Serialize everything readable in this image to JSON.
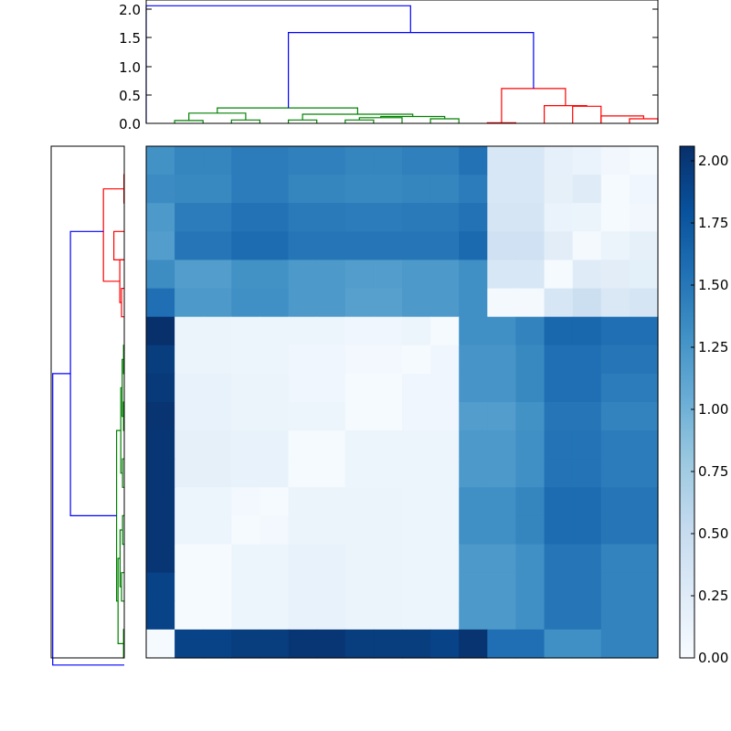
{
  "chart_data": [
    {
      "type": "dendrogram",
      "orientation": "top",
      "ylim": [
        0,
        2.15
      ],
      "yticks": [
        "0.0",
        "0.5",
        "1.0",
        "1.5",
        "2.0"
      ],
      "leaf_slots": 18,
      "colors": {
        "root": "#0000ff",
        "cluster_a": "#008000",
        "cluster_b": "#ff0000"
      },
      "links": [
        {
          "x": [
            0.5,
            0.5,
            1.5,
            1.5
          ],
          "y": [
            0,
            0.05,
            0.05,
            0
          ],
          "color": "#008000"
        },
        {
          "x": [
            2.5,
            2.5,
            3.5,
            3.5
          ],
          "y": [
            0,
            0.06,
            0.06,
            0
          ],
          "color": "#008000"
        },
        {
          "x": [
            1.0,
            1.0,
            3.0,
            3.0
          ],
          "y": [
            0.05,
            0.18,
            0.18,
            0.06
          ],
          "color": "#008000"
        },
        {
          "x": [
            4.5,
            4.5,
            5.5,
            5.5
          ],
          "y": [
            0,
            0.06,
            0.06,
            0
          ],
          "color": "#008000"
        },
        {
          "x": [
            6.5,
            6.5,
            7.5,
            7.5
          ],
          "y": [
            0,
            0.06,
            0.06,
            0
          ],
          "color": "#008000"
        },
        {
          "x": [
            7.0,
            7.0,
            8.5,
            8.5
          ],
          "y": [
            0.06,
            0.1,
            0.1,
            0
          ],
          "color": "#008000"
        },
        {
          "x": [
            9.5,
            9.5,
            10.5,
            10.5
          ],
          "y": [
            0,
            0.08,
            0.08,
            0
          ],
          "color": "#008000"
        },
        {
          "x": [
            7.75,
            7.75,
            10.0,
            10.0
          ],
          "y": [
            0.1,
            0.12,
            0.12,
            0.08
          ],
          "color": "#008000"
        },
        {
          "x": [
            5.0,
            5.0,
            8.875,
            8.875
          ],
          "y": [
            0.06,
            0.16,
            0.16,
            0.12
          ],
          "color": "#008000"
        },
        {
          "x": [
            2.0,
            2.0,
            6.9375,
            6.9375
          ],
          "y": [
            0.18,
            0.27,
            0.27,
            0.16
          ],
          "color": "#008000"
        },
        {
          "x": [
            11.5,
            11.5,
            12.5,
            12.5
          ],
          "y": [
            0,
            0.01,
            0.01,
            0
          ],
          "color": "#ff0000"
        },
        {
          "x": [
            14.5,
            14.5,
            15.5,
            15.5
          ],
          "y": [
            0,
            0.3,
            0.3,
            0
          ],
          "color": "#ff0000"
        },
        {
          "x": [
            16.5,
            16.5,
            17.5,
            17.5
          ],
          "y": [
            0,
            0.08,
            0.08,
            0
          ],
          "color": "#ff0000"
        },
        {
          "x": [
            15.5,
            15.5,
            17.0,
            17.0
          ],
          "y": [
            0,
            0.13,
            0.13,
            0.08
          ],
          "color": "#ff0000"
        },
        {
          "x": [
            13.5,
            13.5,
            15.0,
            15.0
          ],
          "y": [
            0,
            0.31,
            0.31,
            0.3
          ],
          "color": "#ff0000"
        },
        {
          "x": [
            12.0,
            12.0,
            14.25,
            14.25
          ],
          "y": [
            0.01,
            0.61,
            0.61,
            0.31
          ],
          "color": "#ff0000"
        },
        {
          "x": [
            4.5,
            4.5,
            13.125,
            13.125
          ],
          "y": [
            0.27,
            1.59,
            1.59,
            0.61
          ],
          "color": "#0000ff"
        },
        {
          "x": [
            -0.5,
            -0.5,
            8.8,
            8.8
          ],
          "y": [
            0,
            2.06,
            2.06,
            1.59
          ],
          "color": "#0000ff"
        }
      ]
    },
    {
      "type": "heatmap",
      "rows": 18,
      "cols": 18,
      "zlim": [
        0,
        2.05
      ],
      "colormap": "Blues",
      "values": [
        [
          1.28,
          1.38,
          1.38,
          1.45,
          1.45,
          1.42,
          1.42,
          1.38,
          1.38,
          1.42,
          1.42,
          1.53,
          0.32,
          0.32,
          0.17,
          0.13,
          0.06,
          0.02
        ],
        [
          1.33,
          1.35,
          1.35,
          1.45,
          1.45,
          1.38,
          1.38,
          1.35,
          1.35,
          1.38,
          1.38,
          1.45,
          0.32,
          0.32,
          0.18,
          0.25,
          0.02,
          0.08
        ],
        [
          1.22,
          1.45,
          1.45,
          1.53,
          1.53,
          1.47,
          1.47,
          1.45,
          1.45,
          1.47,
          1.47,
          1.53,
          0.35,
          0.35,
          0.13,
          0.12,
          0.02,
          0.06
        ],
        [
          1.18,
          1.5,
          1.5,
          1.58,
          1.58,
          1.5,
          1.5,
          1.5,
          1.5,
          1.5,
          1.5,
          1.6,
          0.42,
          0.42,
          0.22,
          0.03,
          0.12,
          0.18
        ],
        [
          1.32,
          1.18,
          1.18,
          1.28,
          1.28,
          1.22,
          1.22,
          1.18,
          1.18,
          1.22,
          1.22,
          1.3,
          0.32,
          0.32,
          0.02,
          0.25,
          0.22,
          0.2
        ],
        [
          1.55,
          1.22,
          1.22,
          1.3,
          1.3,
          1.22,
          1.22,
          1.15,
          1.15,
          1.22,
          1.22,
          1.3,
          0.03,
          0.03,
          0.33,
          0.45,
          0.3,
          0.35
        ],
        [
          2.05,
          0.12,
          0.12,
          0.1,
          0.1,
          0.1,
          0.1,
          0.08,
          0.08,
          0.1,
          0.02,
          1.3,
          1.3,
          1.4,
          1.62,
          1.62,
          1.55,
          1.55
        ],
        [
          1.95,
          0.12,
          0.12,
          0.1,
          0.1,
          0.08,
          0.08,
          0.05,
          0.05,
          0.02,
          0.08,
          1.25,
          1.25,
          1.35,
          1.55,
          1.55,
          1.5,
          1.5
        ],
        [
          1.98,
          0.15,
          0.15,
          0.12,
          0.12,
          0.08,
          0.08,
          0.02,
          0.02,
          0.08,
          0.08,
          1.25,
          1.25,
          1.35,
          1.55,
          1.55,
          1.45,
          1.45
        ],
        [
          2.02,
          0.15,
          0.15,
          0.12,
          0.12,
          0.1,
          0.1,
          0.02,
          0.02,
          0.08,
          0.08,
          1.18,
          1.18,
          1.28,
          1.5,
          1.5,
          1.4,
          1.4
        ],
        [
          2.0,
          0.18,
          0.18,
          0.15,
          0.15,
          0.02,
          0.02,
          0.1,
          0.1,
          0.1,
          0.1,
          1.22,
          1.22,
          1.3,
          1.52,
          1.52,
          1.45,
          1.45
        ],
        [
          2.0,
          0.18,
          0.18,
          0.15,
          0.15,
          0.02,
          0.02,
          0.1,
          0.1,
          0.1,
          0.1,
          1.22,
          1.22,
          1.3,
          1.52,
          1.52,
          1.45,
          1.45
        ],
        [
          2.0,
          0.1,
          0.1,
          0.05,
          0.02,
          0.12,
          0.12,
          0.12,
          0.12,
          0.1,
          0.1,
          1.3,
          1.3,
          1.38,
          1.58,
          1.58,
          1.5,
          1.5
        ],
        [
          2.0,
          0.1,
          0.1,
          0.02,
          0.05,
          0.12,
          0.12,
          0.12,
          0.12,
          0.1,
          0.1,
          1.3,
          1.3,
          1.38,
          1.58,
          1.58,
          1.5,
          1.5
        ],
        [
          2.0,
          0.02,
          0.02,
          0.1,
          0.1,
          0.15,
          0.15,
          0.12,
          0.12,
          0.1,
          0.1,
          1.22,
          1.22,
          1.3,
          1.5,
          1.5,
          1.4,
          1.4
        ],
        [
          1.9,
          0.02,
          0.02,
          0.1,
          0.1,
          0.15,
          0.15,
          0.12,
          0.12,
          0.1,
          0.1,
          1.22,
          1.22,
          1.3,
          1.5,
          1.5,
          1.4,
          1.4
        ],
        [
          1.9,
          0.02,
          0.02,
          0.1,
          0.1,
          0.15,
          0.15,
          0.12,
          0.12,
          0.1,
          0.1,
          1.22,
          1.22,
          1.3,
          1.5,
          1.5,
          1.4,
          1.4
        ],
        [
          0.02,
          1.9,
          1.9,
          1.95,
          1.95,
          2.0,
          2.0,
          1.95,
          1.95,
          1.95,
          1.9,
          2.02,
          1.55,
          1.55,
          1.3,
          1.3,
          1.4,
          1.4
        ]
      ]
    },
    {
      "type": "colorbar",
      "range": [
        0,
        2.05
      ],
      "ticks": [
        "0.00",
        "0.25",
        "0.50",
        "0.75",
        "1.00",
        "1.25",
        "1.50",
        "1.75",
        "2.00"
      ]
    },
    {
      "type": "dendrogram",
      "orientation": "left",
      "leaf_slots": 18,
      "max_height": 2.06,
      "links": [
        {
          "y": [
            0.5,
            0.5,
            1.5,
            1.5
          ],
          "h": [
            0,
            0.01,
            0.01,
            0
          ],
          "color": "#ff0000"
        },
        {
          "y": [
            2.5,
            2.5,
            3.5,
            3.5
          ],
          "h": [
            0,
            0.3,
            0.3,
            0
          ],
          "color": "#ff0000"
        },
        {
          "y": [
            4.5,
            4.5,
            5.5,
            5.5
          ],
          "h": [
            0,
            0.08,
            0.08,
            0
          ],
          "color": "#ff0000"
        },
        {
          "y": [
            3.5,
            3.5,
            5.0,
            5.0
          ],
          "h": [
            0,
            0.13,
            0.13,
            0.08
          ],
          "color": "#ff0000"
        },
        {
          "y": [
            1.0,
            1.0,
            4.25,
            4.25
          ],
          "h": [
            0.01,
            0.6,
            0.6,
            0.13
          ],
          "color": "#ff0000"
        },
        {
          "y": [
            6.5,
            6.5,
            7.5,
            7.5
          ],
          "h": [
            0,
            0.02,
            0.02,
            0
          ],
          "color": "#008000"
        },
        {
          "y": [
            8.5,
            8.5,
            9.5,
            9.5
          ],
          "h": [
            0,
            0.02,
            0.02,
            0
          ],
          "color": "#008000"
        },
        {
          "y": [
            7.0,
            7.0,
            9.0,
            9.0
          ],
          "h": [
            0.02,
            0.06,
            0.06,
            0.02
          ],
          "color": "#008000"
        },
        {
          "y": [
            10.5,
            10.5,
            11.5,
            11.5
          ],
          "h": [
            0,
            0.05,
            0.05,
            0
          ],
          "color": "#008000"
        },
        {
          "y": [
            8.0,
            8.0,
            11.0,
            11.0
          ],
          "h": [
            0.06,
            0.1,
            0.1,
            0.05
          ],
          "color": "#008000"
        },
        {
          "y": [
            12.5,
            12.5,
            13.5,
            13.5
          ],
          "h": [
            0,
            0.05,
            0.05,
            0
          ],
          "color": "#008000"
        },
        {
          "y": [
            14.5,
            14.5,
            15.5,
            15.5
          ],
          "h": [
            0,
            0.08,
            0.08,
            0
          ],
          "color": "#008000"
        },
        {
          "y": [
            13.0,
            13.0,
            15.0,
            15.0
          ],
          "h": [
            0.05,
            0.12,
            0.12,
            0.08
          ],
          "color": "#008000"
        },
        {
          "y": [
            16.5,
            16.5,
            17.5,
            17.5
          ],
          "h": [
            0,
            0.02,
            0.02,
            0
          ],
          "color": "#008000"
        },
        {
          "y": [
            14.0,
            14.0,
            17.0,
            17.0
          ],
          "h": [
            0.12,
            0.18,
            0.18,
            0.02
          ],
          "color": "#008000"
        },
        {
          "y": [
            9.5,
            9.5,
            15.5,
            15.5
          ],
          "h": [
            0.1,
            0.22,
            0.22,
            0.18
          ],
          "color": "#008000"
        },
        {
          "y": [
            2.5,
            2.5,
            12.5,
            12.5
          ],
          "h": [
            0.6,
            1.55,
            1.55,
            0.22
          ],
          "color": "#0000ff"
        },
        {
          "y": [
            7.5,
            7.5,
            17.75,
            17.75
          ],
          "h": [
            1.55,
            2.06,
            2.06,
            0
          ],
          "color": "#0000ff"
        }
      ]
    }
  ]
}
